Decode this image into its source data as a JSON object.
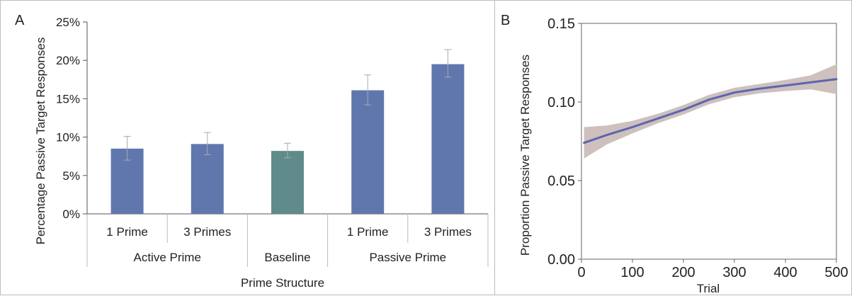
{
  "chart_data": [
    {
      "type": "bar",
      "panel_label": "A",
      "ylabel": "Percentage Passive Target Responses",
      "xlabel": "Prime Structure",
      "ylim": [
        0,
        25
      ],
      "yticks": [
        "0%",
        "5%",
        "10%",
        "15%",
        "20%",
        "25%"
      ],
      "categories": [
        "1 Prime",
        "3 Primes",
        "",
        "1 Prime",
        "3 Primes"
      ],
      "groups": [
        "Active Prime",
        "Baseline",
        "Passive Prime"
      ],
      "values": [
        8.5,
        9.1,
        8.2,
        16.1,
        19.5
      ],
      "error_low": [
        7.0,
        7.7,
        7.3,
        14.2,
        17.8
      ],
      "error_high": [
        10.1,
        10.6,
        9.2,
        18.1,
        21.4
      ],
      "bar_colors": [
        "#6077ae",
        "#6077ae",
        "#5f8c8a",
        "#6077ae",
        "#6077ae"
      ]
    },
    {
      "type": "line",
      "panel_label": "B",
      "ylabel": "Proportion Passive Target Responses",
      "xlabel": "Trial",
      "xlim": [
        0,
        500
      ],
      "ylim": [
        0,
        0.15
      ],
      "xticks": [
        "0",
        "100",
        "200",
        "300",
        "400",
        "500"
      ],
      "yticks": [
        "0.00",
        "0.05",
        "0.10",
        "0.15"
      ],
      "x": [
        5,
        50,
        100,
        150,
        200,
        250,
        300,
        350,
        400,
        450,
        500
      ],
      "y": [
        0.074,
        0.079,
        0.084,
        0.0895,
        0.095,
        0.1015,
        0.106,
        0.1085,
        0.1105,
        0.1125,
        0.1145
      ],
      "ci_low": [
        0.064,
        0.073,
        0.08,
        0.0865,
        0.092,
        0.0985,
        0.103,
        0.1055,
        0.107,
        0.108,
        0.105
      ],
      "ci_high": [
        0.084,
        0.085,
        0.088,
        0.0925,
        0.098,
        0.1045,
        0.109,
        0.1115,
        0.114,
        0.117,
        0.124
      ],
      "line_color": "#5c65b0",
      "band_color": "#cdc0bd"
    }
  ]
}
